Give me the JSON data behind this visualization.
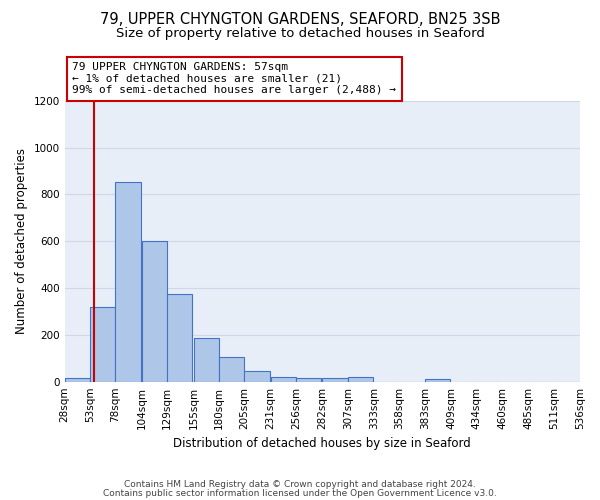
{
  "title1": "79, UPPER CHYNGTON GARDENS, SEAFORD, BN25 3SB",
  "title2": "Size of property relative to detached houses in Seaford",
  "xlabel": "Distribution of detached houses by size in Seaford",
  "ylabel": "Number of detached properties",
  "footnote1": "Contains HM Land Registry data © Crown copyright and database right 2024.",
  "footnote2": "Contains public sector information licensed under the Open Government Licence v3.0.",
  "annotation_line1": "79 UPPER CHYNGTON GARDENS: 57sqm",
  "annotation_line2": "← 1% of detached houses are smaller (21)",
  "annotation_line3": "99% of semi-detached houses are larger (2,488) →",
  "bar_left_edges": [
    28,
    53,
    78,
    104,
    129,
    155,
    180,
    205,
    231,
    256,
    282,
    307,
    333,
    358,
    383,
    409,
    434,
    460,
    485,
    511
  ],
  "bar_widths": [
    25,
    25,
    25,
    25,
    25,
    25,
    25,
    25,
    25,
    25,
    25,
    25,
    25,
    25,
    25,
    25,
    25,
    25,
    25,
    25
  ],
  "bar_heights": [
    15,
    320,
    855,
    600,
    375,
    185,
    105,
    45,
    20,
    15,
    15,
    20,
    0,
    0,
    10,
    0,
    0,
    0,
    0,
    0
  ],
  "bar_color": "#aec6e8",
  "bar_edgecolor": "#4472c4",
  "xlim": [
    28,
    536
  ],
  "ylim": [
    0,
    1200
  ],
  "yticks": [
    0,
    200,
    400,
    600,
    800,
    1000,
    1200
  ],
  "xtick_labels": [
    "28sqm",
    "53sqm",
    "78sqm",
    "104sqm",
    "129sqm",
    "155sqm",
    "180sqm",
    "205sqm",
    "231sqm",
    "256sqm",
    "282sqm",
    "307sqm",
    "333sqm",
    "358sqm",
    "383sqm",
    "409sqm",
    "434sqm",
    "460sqm",
    "485sqm",
    "511sqm",
    "536sqm"
  ],
  "property_size": 57,
  "vline_color": "#cc0000",
  "annotation_box_color": "#cc0000",
  "grid_color": "#d0d8e8",
  "bg_color": "#e8eef8",
  "title1_fontsize": 10.5,
  "title2_fontsize": 9.5,
  "axis_label_fontsize": 8.5,
  "tick_fontsize": 7.5,
  "annotation_fontsize": 8,
  "footnote_fontsize": 6.5
}
